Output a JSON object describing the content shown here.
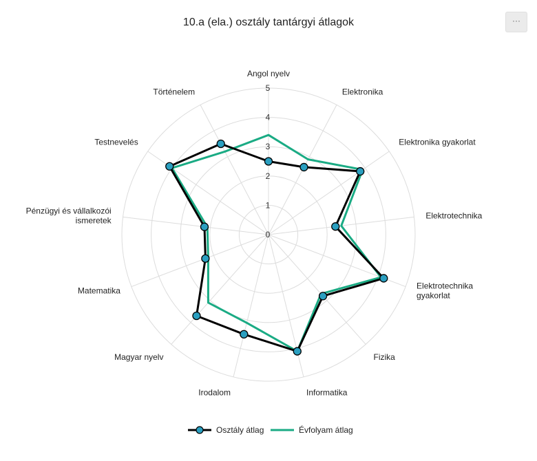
{
  "title": "10.a (ela.) osztály tantárgyi átlagok",
  "menu": {
    "icon": "more-dots-icon",
    "label": "···"
  },
  "colors": {
    "class_series": "#000000",
    "class_marker": "#2a9fc0",
    "year_series": "#1aab84",
    "grid": "#dcdcdc"
  },
  "chart_data": {
    "type": "radar",
    "title": "10.a (ela.) osztály tantárgyi átlagok",
    "categories": [
      "Angol nyelv",
      "Elektronika",
      "Elektronika gyakorlat",
      "Elektrotechnika",
      "Elektrotechnika gyakorlat",
      "Fizika",
      "Informatika",
      "Irodalom",
      "Magyar nyelv",
      "Matematika",
      "Pénzügyi és vállalkozói ismeretek",
      "Testnevelés",
      "Történelem"
    ],
    "rlim": [
      0,
      5
    ],
    "ticks": [
      "0",
      "1",
      "2",
      "3",
      "4",
      "5"
    ],
    "grid": true,
    "legend": "bottom",
    "series": [
      {
        "name": "Osztály átlag",
        "values": [
          2.5,
          2.6,
          3.8,
          2.3,
          4.2,
          2.8,
          4.1,
          3.5,
          3.7,
          2.3,
          2.2,
          4.1,
          3.5
        ],
        "color": "#000000",
        "marker": "#2a9fc0"
      },
      {
        "name": "Évfolyam átlag",
        "values": [
          3.4,
          2.9,
          3.9,
          2.5,
          4.1,
          2.7,
          4.1,
          3.1,
          3.1,
          2.2,
          2.1,
          4.0,
          3.2
        ],
        "color": "#1aab84"
      }
    ]
  }
}
